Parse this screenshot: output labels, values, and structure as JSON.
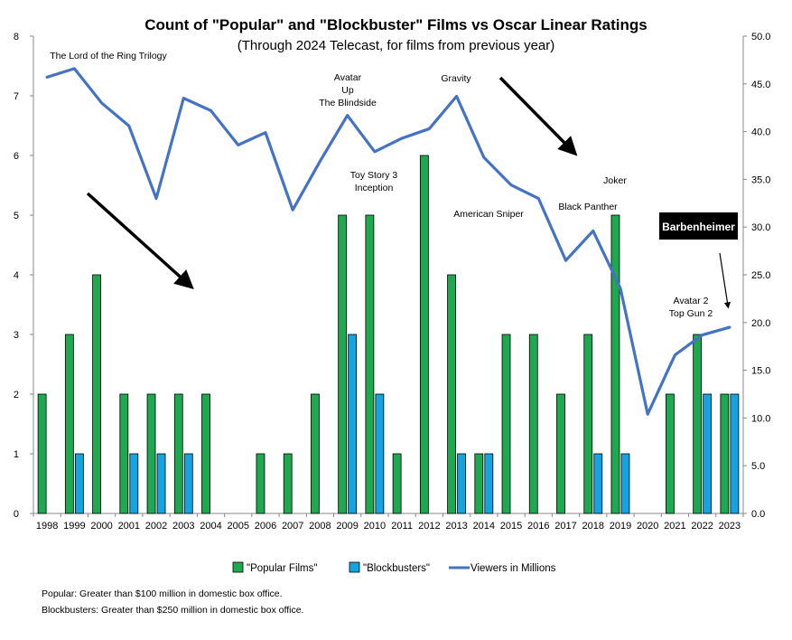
{
  "chart_data": {
    "type": "bar",
    "title": "Count of \"Popular\" and \"Blockbuster\" Films vs Oscar Linear Ratings",
    "subtitle": "(Through 2024 Telecast, for films from previous year)",
    "categories": [
      "1998",
      "1999",
      "2000",
      "2001",
      "2002",
      "2003",
      "2004",
      "2005",
      "2006",
      "2007",
      "2008",
      "2009",
      "2010",
      "2011",
      "2012",
      "2013",
      "2014",
      "2015",
      "2016",
      "2017",
      "2018",
      "2019",
      "2020",
      "2021",
      "2022",
      "2023"
    ],
    "series": [
      {
        "name": "\"Popular Films\"",
        "kind": "bar",
        "axis": "left",
        "color": "#1fa84f",
        "values": [
          2,
          3,
          4,
          2,
          2,
          2,
          2,
          0,
          1,
          1,
          2,
          5,
          5,
          1,
          6,
          4,
          1,
          3,
          3,
          2,
          3,
          5,
          0,
          2,
          3,
          2
        ]
      },
      {
        "name": "\"Blockbusters\"",
        "kind": "bar",
        "axis": "left",
        "color": "#16a4e0",
        "values": [
          0,
          1,
          0,
          1,
          1,
          1,
          0,
          0,
          0,
          0,
          0,
          3,
          2,
          0,
          0,
          1,
          1,
          0,
          0,
          0,
          1,
          1,
          0,
          0,
          2,
          2
        ]
      },
      {
        "name": "Viewers in Millions",
        "kind": "line",
        "axis": "right",
        "color": "#4472c4",
        "values": [
          45.7,
          46.6,
          43.0,
          40.6,
          33.0,
          43.5,
          42.2,
          38.6,
          39.9,
          31.8,
          36.9,
          41.7,
          37.9,
          39.3,
          40.3,
          43.7,
          37.3,
          34.4,
          33.0,
          26.5,
          29.6,
          23.6,
          10.4,
          16.6,
          18.7,
          19.5
        ]
      }
    ],
    "ylim_left": [
      0,
      8
    ],
    "yticks_left": [
      "0",
      "1",
      "2",
      "3",
      "4",
      "5",
      "6",
      "7",
      "8"
    ],
    "ylim_right": [
      0,
      50
    ],
    "yticks_right": [
      "0.0",
      "5.0",
      "10.0",
      "15.0",
      "20.0",
      "25.0",
      "30.0",
      "35.0",
      "40.0",
      "45.0",
      "50.0"
    ],
    "legend_position": "bottom",
    "grid": false,
    "annotations": [
      {
        "text": "The Lord of the Ring Trilogy",
        "year": "1999"
      },
      {
        "text": "Avatar\nUp\nThe Blindside",
        "year": "2009"
      },
      {
        "text": "Toy Story 3\nInception",
        "year": "2010"
      },
      {
        "text": "Gravity",
        "year": "2013"
      },
      {
        "text": "American Sniper",
        "year": "2015"
      },
      {
        "text": "Black Panther",
        "year": "2018"
      },
      {
        "text": "Joker",
        "year": "2019"
      },
      {
        "text": "Avatar 2\nTop Gun 2",
        "year": "2022"
      }
    ],
    "callout": "Barbenheimer"
  },
  "footnotes": [
    "Popular: Greater than $100 million in domestic box office.",
    "Blockbusters: Greater than $250 million in domestic box office."
  ]
}
